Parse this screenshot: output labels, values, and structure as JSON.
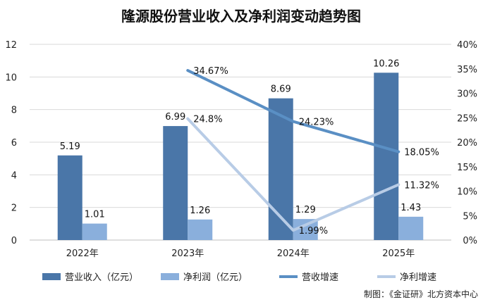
{
  "chart_data": {
    "type": "bar",
    "title": "隆源股份营业收入及净利润变动趋势图",
    "categories": [
      "2022年",
      "2023年",
      "2024年",
      "2025年"
    ],
    "y_left": {
      "min": 0,
      "max": 12,
      "ticks": [
        "0",
        "2",
        "4",
        "6",
        "8",
        "10",
        "12"
      ]
    },
    "y_right": {
      "min": 0,
      "max": 40,
      "ticks": [
        "0%",
        "5%",
        "10%",
        "15%",
        "20%",
        "25%",
        "30%",
        "35%",
        "40%"
      ]
    },
    "series": [
      {
        "name": "营业收入（亿元）",
        "kind": "bar",
        "axis": "left",
        "color": "#4a76a8",
        "values": [
          5.19,
          6.99,
          8.69,
          10.26
        ],
        "labels": [
          "5.19",
          "6.99",
          "8.69",
          "10.26"
        ]
      },
      {
        "name": "净利润（亿元）",
        "kind": "bar",
        "axis": "left",
        "color": "#8aafdc",
        "values": [
          1.01,
          1.26,
          1.29,
          1.43
        ],
        "labels": [
          "1.01",
          "1.26",
          "1.29",
          "1.43"
        ]
      },
      {
        "name": "营收增速",
        "kind": "line",
        "axis": "right",
        "color": "#5a8fc4",
        "values": [
          null,
          34.67,
          24.23,
          18.05
        ],
        "labels": [
          "",
          "34.67%",
          "24.23%",
          "18.05%"
        ]
      },
      {
        "name": "净利增速",
        "kind": "line",
        "axis": "right",
        "color": "#b8cce6",
        "values": [
          null,
          24.8,
          1.99,
          11.32
        ],
        "labels": [
          "",
          "24.8%",
          "1.99%",
          "11.32%"
        ]
      }
    ],
    "grid": true,
    "legend_position": "bottom",
    "source": "制图：《金证研》北方资本中心"
  }
}
